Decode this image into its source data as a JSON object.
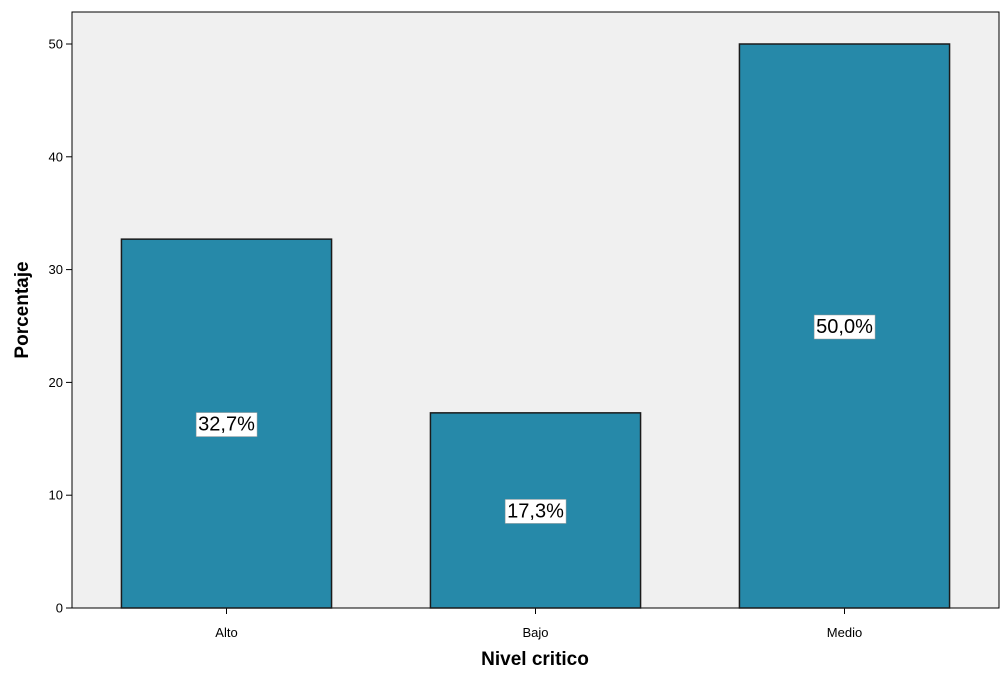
{
  "chart_data": {
    "type": "bar",
    "categories": [
      "Alto",
      "Bajo",
      "Medio"
    ],
    "values": [
      32.7,
      17.3,
      50.0
    ],
    "data_labels": [
      "32,7%",
      "17,3%",
      "50,0%"
    ],
    "title": "",
    "xlabel": "Nivel critico",
    "ylabel": "Porcentaje",
    "ylim": [
      0,
      53
    ],
    "yticks": [
      0,
      10,
      20,
      30,
      40,
      50
    ],
    "grid": false,
    "colors": {
      "bar": "#2689a9",
      "bar_border": "#1b1b1b",
      "plot_bg": "#f0f0f0",
      "label_bg": "#ffffff"
    }
  }
}
